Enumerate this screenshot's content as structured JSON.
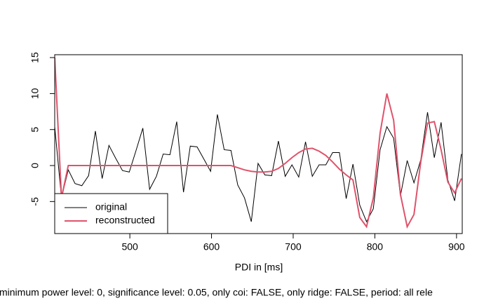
{
  "chart_data": {
    "type": "line",
    "x": [
      408.0,
      416.3,
      424.6,
      432.9,
      441.2,
      449.5,
      457.8,
      466.1,
      474.4,
      482.7,
      491.0,
      499.3,
      507.6,
      515.9,
      524.2,
      532.5,
      540.8,
      549.1,
      557.4,
      565.7,
      574.0,
      582.3,
      590.6,
      598.9,
      607.2,
      615.5,
      623.8,
      632.1,
      640.4,
      648.7,
      657.0,
      665.3,
      673.6,
      681.9,
      690.2,
      698.5,
      706.8,
      715.1,
      723.4,
      731.7,
      740.0,
      748.3,
      756.6,
      764.9,
      773.2,
      781.5,
      789.8,
      798.1,
      806.4,
      814.7,
      823.0,
      831.3,
      839.6,
      847.9,
      856.2,
      864.5,
      872.8,
      881.1,
      889.4,
      897.7,
      906.0
    ],
    "series": [
      {
        "name": "original",
        "color": "#000000",
        "width": 1,
        "values": [
          5.4,
          -4.5,
          -0.6,
          -2.5,
          -2.8,
          -1.4,
          4.8,
          -1.8,
          2.8,
          1.0,
          -0.7,
          -0.9,
          2.1,
          5.2,
          -3.3,
          -1.5,
          1.6,
          1.5,
          6.1,
          -3.7,
          2.7,
          2.6,
          0.9,
          -0.8,
          7.1,
          2.2,
          2.1,
          -2.7,
          -4.5,
          -7.8,
          0.3,
          -1.3,
          -1.4,
          3.4,
          -1.5,
          0.1,
          -1.6,
          3.3,
          -1.5,
          0.1,
          0.1,
          1.8,
          1.8,
          -4.6,
          0.2,
          -5.5,
          -7.8,
          -6.0,
          2.2,
          5.4,
          3.8,
          -4.2,
          0.7,
          -2.4,
          0.8,
          7.4,
          1.1,
          6.0,
          -2.0,
          -4.9,
          1.6
        ]
      },
      {
        "name": "reconstructed",
        "color": "#df536b",
        "width": 2,
        "values": [
          15,
          -4.5,
          0,
          0,
          0,
          0,
          0,
          0,
          0,
          0,
          0,
          0,
          0,
          0,
          0,
          0,
          0,
          0,
          0,
          0,
          0,
          0,
          0,
          0,
          0,
          0,
          0,
          -0.3,
          -0.6,
          -0.8,
          -0.9,
          -0.9,
          -0.8,
          -0.4,
          0.3,
          1.1,
          1.8,
          2.3,
          2.4,
          2.0,
          1.4,
          0.5,
          -0.5,
          -1.3,
          -2.0,
          -7.2,
          -8.5,
          -4.5,
          4.5,
          10.0,
          6.3,
          -4.0,
          -8.5,
          -6.8,
          0.5,
          5.9,
          6.1,
          2.2,
          -2.3,
          -3.8,
          -1.8
        ]
      }
    ],
    "xlim": [
      408,
      907
    ],
    "ylim": [
      -9.45,
      15.4
    ],
    "xticks": [
      500,
      600,
      700,
      800,
      900
    ],
    "yticks": [
      -5,
      0,
      5,
      10,
      15
    ],
    "x_label": "PDI in [ms]",
    "footer": "minimum power level: 0, significance level: 0.05, only coi: FALSE, only ridge: FALSE, period: all rele",
    "legend": "bottomleft"
  }
}
